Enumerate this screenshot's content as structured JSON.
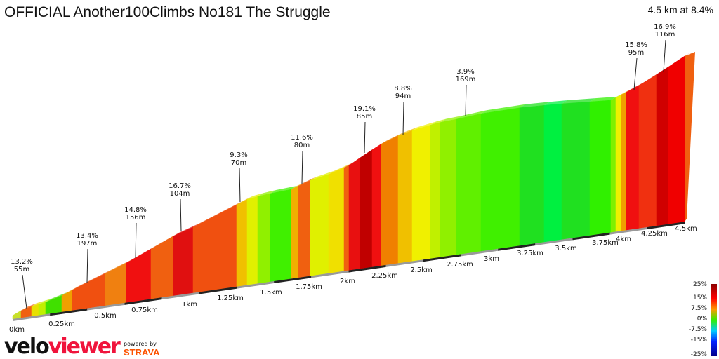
{
  "title": "OFFICIAL Another100Climbs No181 The Struggle",
  "summary": "4.5 km at 8.4%",
  "chart_data": {
    "type": "area",
    "xlabel": "",
    "ylabel": "",
    "x_ticks": [
      "0km",
      "0.25km",
      "0.5km",
      "0.75km",
      "1km",
      "1.25km",
      "1.5km",
      "1.75km",
      "2km",
      "2.25km",
      "2.5km",
      "2.75km",
      "3km",
      "3.25km",
      "3.5km",
      "3.75km",
      "4km",
      "4.25km",
      "4.5km"
    ],
    "xlim": [
      0,
      4.5
    ],
    "annotations": [
      {
        "grade": "13.2%",
        "length": "55m"
      },
      {
        "grade": "13.4%",
        "length": "197m"
      },
      {
        "grade": "14.8%",
        "length": "156m"
      },
      {
        "grade": "16.7%",
        "length": "104m"
      },
      {
        "grade": "9.3%",
        "length": "70m"
      },
      {
        "grade": "11.6%",
        "length": "80m"
      },
      {
        "grade": "19.1%",
        "length": "85m"
      },
      {
        "grade": "8.8%",
        "length": "94m"
      },
      {
        "grade": "3.9%",
        "length": "169m"
      },
      {
        "grade": "15.8%",
        "length": "95m"
      },
      {
        "grade": "16.9%",
        "length": "116m"
      }
    ],
    "legend": {
      "labels": [
        "25%",
        "15%",
        "7.5%",
        "0%",
        "-7.5%",
        "-15%",
        "-25%"
      ],
      "colors": [
        "#8b0000",
        "#ff0000",
        "#ff9900",
        "#33ee00",
        "#00ccff",
        "#0022ff",
        "#00008b"
      ],
      "placement": "bottom-right"
    }
  },
  "branding": {
    "logo_velo": "velo",
    "logo_viewer": "viewer",
    "powered_by": "powered by",
    "strava": "STRAVA"
  }
}
